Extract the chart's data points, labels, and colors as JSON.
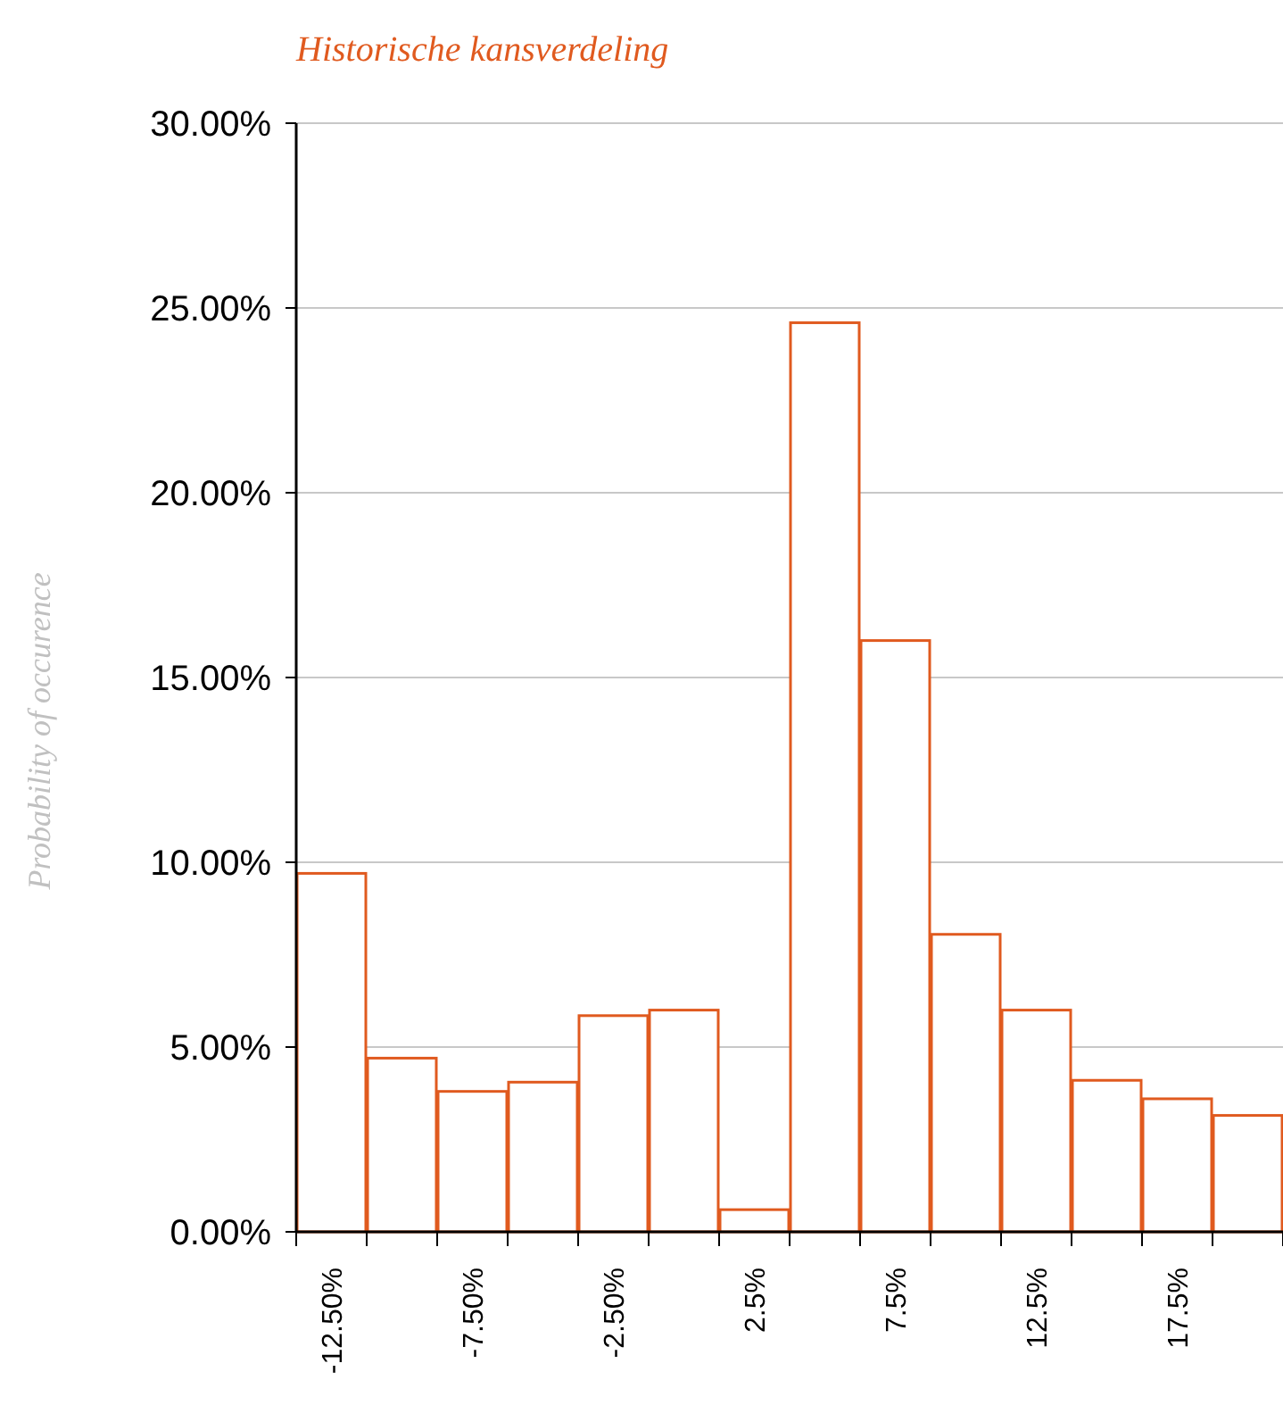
{
  "chart_data": {
    "type": "bar",
    "title": "Historische kansverdeling",
    "ylabel": "Probability of occurence",
    "categories": [
      "-12.50%",
      null,
      "-7.50%",
      null,
      "-2.50%",
      null,
      "2.5%",
      null,
      "7.5%",
      null,
      "12.5%",
      null,
      "17.5%",
      null
    ],
    "values": [
      9.7,
      4.7,
      3.8,
      4.05,
      5.85,
      6.0,
      0.6,
      24.6,
      16.0,
      8.05,
      6.0,
      4.1,
      3.6,
      3.15
    ],
    "color": "#e05a1f",
    "ylim": [
      0,
      30
    ],
    "yticks": [
      {
        "value": 0,
        "label": "0.00%"
      },
      {
        "value": 5,
        "label": "5.00%"
      },
      {
        "value": 10,
        "label": "10.00%"
      },
      {
        "value": 15,
        "label": "15.00%"
      },
      {
        "value": 20,
        "label": "20.00%"
      },
      {
        "value": 25,
        "label": "25.00%"
      },
      {
        "value": 30,
        "label": "30.00%"
      }
    ],
    "grid": "y"
  }
}
